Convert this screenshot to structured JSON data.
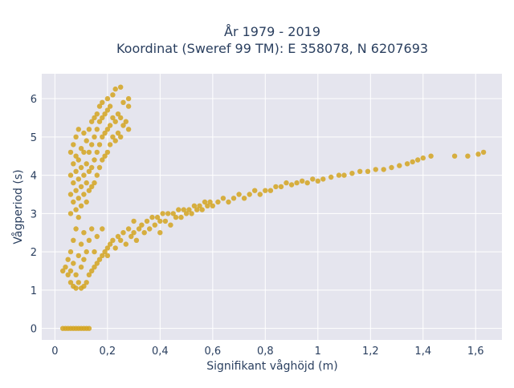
{
  "chart_data": {
    "type": "scatter",
    "title": [
      "År 1979 - 2019",
      "Koordinat (Sweref 99 TM): E 358078, N 6207693"
    ],
    "xlabel": "Signifikant våghöjd (m)",
    "ylabel": "Vågperiod (s)",
    "xlim": [
      -0.05,
      1.7
    ],
    "ylim": [
      -0.3,
      6.65
    ],
    "x_ticks": [
      0,
      0.2,
      0.4,
      0.6,
      0.8,
      1,
      1.2,
      1.4,
      1.6
    ],
    "x_tick_labels": [
      "0",
      "0,2",
      "0,4",
      "0,6",
      "0,8",
      "1",
      "1,2",
      "1,4",
      "1,6"
    ],
    "y_ticks": [
      0,
      1,
      2,
      3,
      4,
      5,
      6
    ],
    "y_tick_labels": [
      "0",
      "1",
      "2",
      "3",
      "4",
      "5",
      "6"
    ],
    "grid": true,
    "marker_color": "#d4a520",
    "plot_background": "#e5e5ee",
    "series": [
      {
        "points": [
          [
            0.03,
            1.5
          ],
          [
            0.04,
            1.6
          ],
          [
            0.05,
            1.4
          ],
          [
            0.05,
            1.8
          ],
          [
            0.06,
            1.2
          ],
          [
            0.06,
            2.0
          ],
          [
            0.06,
            1.5
          ],
          [
            0.07,
            1.1
          ],
          [
            0.07,
            1.7
          ],
          [
            0.07,
            2.3
          ],
          [
            0.08,
            1.05
          ],
          [
            0.08,
            1.4
          ],
          [
            0.08,
            2.6
          ],
          [
            0.09,
            1.2
          ],
          [
            0.09,
            1.9
          ],
          [
            0.09,
            2.9
          ],
          [
            0.1,
            1.05
          ],
          [
            0.1,
            1.6
          ],
          [
            0.1,
            2.2
          ],
          [
            0.11,
            1.1
          ],
          [
            0.11,
            1.8
          ],
          [
            0.11,
            2.5
          ],
          [
            0.12,
            1.2
          ],
          [
            0.12,
            2.0
          ],
          [
            0.13,
            1.4
          ],
          [
            0.13,
            2.3
          ],
          [
            0.14,
            1.5
          ],
          [
            0.14,
            2.6
          ],
          [
            0.15,
            1.6
          ],
          [
            0.15,
            2.0
          ],
          [
            0.16,
            1.7
          ],
          [
            0.16,
            2.4
          ],
          [
            0.17,
            1.8
          ],
          [
            0.18,
            1.9
          ],
          [
            0.18,
            2.6
          ],
          [
            0.19,
            2.0
          ],
          [
            0.2,
            2.1
          ],
          [
            0.2,
            1.9
          ],
          [
            0.21,
            2.2
          ],
          [
            0.22,
            2.3
          ],
          [
            0.23,
            2.1
          ],
          [
            0.24,
            2.4
          ],
          [
            0.25,
            2.3
          ],
          [
            0.26,
            2.5
          ],
          [
            0.27,
            2.2
          ],
          [
            0.28,
            2.6
          ],
          [
            0.29,
            2.4
          ],
          [
            0.3,
            2.5
          ],
          [
            0.3,
            2.8
          ],
          [
            0.31,
            2.3
          ],
          [
            0.32,
            2.6
          ],
          [
            0.33,
            2.7
          ],
          [
            0.34,
            2.5
          ],
          [
            0.35,
            2.8
          ],
          [
            0.36,
            2.6
          ],
          [
            0.37,
            2.9
          ],
          [
            0.38,
            2.7
          ],
          [
            0.39,
            2.9
          ],
          [
            0.4,
            2.8
          ],
          [
            0.4,
            2.5
          ],
          [
            0.41,
            3.0
          ],
          [
            0.42,
            2.8
          ],
          [
            0.43,
            3.0
          ],
          [
            0.44,
            2.7
          ],
          [
            0.45,
            3.0
          ],
          [
            0.46,
            2.9
          ],
          [
            0.47,
            3.1
          ],
          [
            0.48,
            2.9
          ],
          [
            0.49,
            3.1
          ],
          [
            0.5,
            3.0
          ],
          [
            0.51,
            3.1
          ],
          [
            0.52,
            3.0
          ],
          [
            0.53,
            3.2
          ],
          [
            0.54,
            3.1
          ],
          [
            0.55,
            3.2
          ],
          [
            0.56,
            3.1
          ],
          [
            0.57,
            3.3
          ],
          [
            0.58,
            3.2
          ],
          [
            0.59,
            3.3
          ],
          [
            0.6,
            3.2
          ],
          [
            0.62,
            3.3
          ],
          [
            0.64,
            3.4
          ],
          [
            0.66,
            3.3
          ],
          [
            0.68,
            3.4
          ],
          [
            0.7,
            3.5
          ],
          [
            0.72,
            3.4
          ],
          [
            0.74,
            3.5
          ],
          [
            0.76,
            3.6
          ],
          [
            0.78,
            3.5
          ],
          [
            0.8,
            3.6
          ],
          [
            0.82,
            3.6
          ],
          [
            0.84,
            3.7
          ],
          [
            0.86,
            3.7
          ],
          [
            0.88,
            3.8
          ],
          [
            0.9,
            3.75
          ],
          [
            0.92,
            3.8
          ],
          [
            0.94,
            3.85
          ],
          [
            0.96,
            3.8
          ],
          [
            0.98,
            3.9
          ],
          [
            1.0,
            3.85
          ],
          [
            1.02,
            3.9
          ],
          [
            1.05,
            3.95
          ],
          [
            1.08,
            4.0
          ],
          [
            1.1,
            4.0
          ],
          [
            1.13,
            4.05
          ],
          [
            1.16,
            4.1
          ],
          [
            1.19,
            4.1
          ],
          [
            1.22,
            4.15
          ],
          [
            1.25,
            4.15
          ],
          [
            1.28,
            4.2
          ],
          [
            1.31,
            4.25
          ],
          [
            1.34,
            4.3
          ],
          [
            1.36,
            4.35
          ],
          [
            1.38,
            4.4
          ],
          [
            1.4,
            4.45
          ],
          [
            1.43,
            4.5
          ],
          [
            1.52,
            4.5
          ],
          [
            1.57,
            4.5
          ],
          [
            1.61,
            4.55
          ],
          [
            1.63,
            4.6
          ],
          [
            0.06,
            3.0
          ],
          [
            0.06,
            3.5
          ],
          [
            0.06,
            4.0
          ],
          [
            0.06,
            4.6
          ],
          [
            0.07,
            3.3
          ],
          [
            0.07,
            3.8
          ],
          [
            0.07,
            4.3
          ],
          [
            0.07,
            4.8
          ],
          [
            0.08,
            3.1
          ],
          [
            0.08,
            3.6
          ],
          [
            0.08,
            4.1
          ],
          [
            0.08,
            4.5
          ],
          [
            0.08,
            5.0
          ],
          [
            0.09,
            3.4
          ],
          [
            0.09,
            3.9
          ],
          [
            0.09,
            4.4
          ],
          [
            0.09,
            5.2
          ],
          [
            0.1,
            3.2
          ],
          [
            0.1,
            3.7
          ],
          [
            0.1,
            4.2
          ],
          [
            0.1,
            4.7
          ],
          [
            0.11,
            3.5
          ],
          [
            0.11,
            4.0
          ],
          [
            0.11,
            4.6
          ],
          [
            0.11,
            5.1
          ],
          [
            0.12,
            3.3
          ],
          [
            0.12,
            3.8
          ],
          [
            0.12,
            4.3
          ],
          [
            0.12,
            4.9
          ],
          [
            0.13,
            3.6
          ],
          [
            0.13,
            4.1
          ],
          [
            0.13,
            4.6
          ],
          [
            0.13,
            5.2
          ],
          [
            0.14,
            3.7
          ],
          [
            0.14,
            4.2
          ],
          [
            0.14,
            4.8
          ],
          [
            0.14,
            5.4
          ],
          [
            0.15,
            3.8
          ],
          [
            0.15,
            4.4
          ],
          [
            0.15,
            5.0
          ],
          [
            0.15,
            5.5
          ],
          [
            0.16,
            4.0
          ],
          [
            0.16,
            4.6
          ],
          [
            0.16,
            5.2
          ],
          [
            0.16,
            5.6
          ],
          [
            0.17,
            4.2
          ],
          [
            0.17,
            4.8
          ],
          [
            0.17,
            5.4
          ],
          [
            0.17,
            5.8
          ],
          [
            0.18,
            4.4
          ],
          [
            0.18,
            5.0
          ],
          [
            0.18,
            5.5
          ],
          [
            0.18,
            5.9
          ],
          [
            0.19,
            4.5
          ],
          [
            0.19,
            5.1
          ],
          [
            0.19,
            5.6
          ],
          [
            0.2,
            4.6
          ],
          [
            0.2,
            5.2
          ],
          [
            0.2,
            5.7
          ],
          [
            0.2,
            6.0
          ],
          [
            0.21,
            4.8
          ],
          [
            0.21,
            5.3
          ],
          [
            0.21,
            5.8
          ],
          [
            0.22,
            5.0
          ],
          [
            0.22,
            5.5
          ],
          [
            0.22,
            6.1
          ],
          [
            0.23,
            4.9
          ],
          [
            0.23,
            5.4
          ],
          [
            0.23,
            6.25
          ],
          [
            0.24,
            5.1
          ],
          [
            0.24,
            5.6
          ],
          [
            0.25,
            5.0
          ],
          [
            0.25,
            5.5
          ],
          [
            0.25,
            6.3
          ],
          [
            0.26,
            5.3
          ],
          [
            0.26,
            5.9
          ],
          [
            0.27,
            5.4
          ],
          [
            0.28,
            5.2
          ],
          [
            0.28,
            5.8
          ],
          [
            0.28,
            6.0
          ],
          [
            0.03,
            0
          ],
          [
            0.04,
            0
          ],
          [
            0.05,
            0
          ],
          [
            0.06,
            0
          ],
          [
            0.07,
            0
          ],
          [
            0.08,
            0
          ],
          [
            0.09,
            0
          ],
          [
            0.1,
            0
          ],
          [
            0.11,
            0
          ],
          [
            0.12,
            0
          ],
          [
            0.13,
            0
          ]
        ]
      }
    ]
  }
}
